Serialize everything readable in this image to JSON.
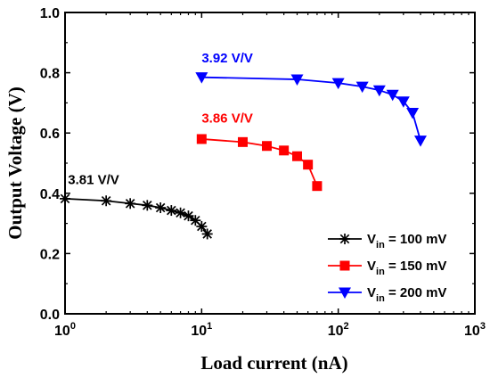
{
  "chart_data": {
    "type": "line",
    "xlabel": "Load current (nA)",
    "ylabel": "Output Voltage (V)",
    "x_scale": "log",
    "xlim": [
      1,
      1000
    ],
    "ylim": [
      0.0,
      1.0
    ],
    "x_ticks": [
      {
        "value": 1,
        "base": "10",
        "exp": "0"
      },
      {
        "value": 10,
        "base": "10",
        "exp": "1"
      },
      {
        "value": 100,
        "base": "10",
        "exp": "2"
      },
      {
        "value": 1000,
        "base": "10",
        "exp": "3"
      }
    ],
    "y_ticks": [
      {
        "value": 0.0,
        "label": "0.0"
      },
      {
        "value": 0.2,
        "label": "0.2"
      },
      {
        "value": 0.4,
        "label": "0.4"
      },
      {
        "value": 0.6,
        "label": "0.6"
      },
      {
        "value": 0.8,
        "label": "0.8"
      },
      {
        "value": 1.0,
        "label": "1.0"
      }
    ],
    "grid": false,
    "legend_position": "bottom-right",
    "series": [
      {
        "legend_main": "V",
        "legend_sub": "in",
        "legend_rest": " = 100 mV",
        "color": "#000000",
        "marker": "asterisk",
        "x": [
          1,
          2,
          3,
          4,
          5,
          6,
          7,
          8,
          9,
          10,
          11
        ],
        "y": [
          0.382,
          0.375,
          0.366,
          0.36,
          0.352,
          0.343,
          0.335,
          0.325,
          0.31,
          0.29,
          0.265
        ]
      },
      {
        "legend_main": "V",
        "legend_sub": "in",
        "legend_rest": " = 150 mV",
        "color": "#ff0000",
        "marker": "square",
        "x": [
          10,
          20,
          30,
          40,
          50,
          60,
          70
        ],
        "y": [
          0.58,
          0.57,
          0.557,
          0.542,
          0.523,
          0.495,
          0.424
        ]
      },
      {
        "legend_main": "V",
        "legend_sub": "in",
        "legend_rest": " = 200 mV",
        "color": "#0000ff",
        "marker": "triangle-down",
        "x": [
          10,
          50,
          100,
          150,
          200,
          250,
          300,
          350,
          400
        ],
        "y": [
          0.785,
          0.778,
          0.766,
          0.754,
          0.742,
          0.727,
          0.705,
          0.667,
          0.575
        ]
      }
    ],
    "annotations": [
      {
        "text": "3.81 V/V",
        "x": 1.05,
        "y": 0.43,
        "color": "#000000"
      },
      {
        "text": "3.86 V/V",
        "x": 10,
        "y": 0.635,
        "color": "#ff0000"
      },
      {
        "text": "3.92 V/V",
        "x": 10,
        "y": 0.835,
        "color": "#0000ff"
      }
    ]
  }
}
